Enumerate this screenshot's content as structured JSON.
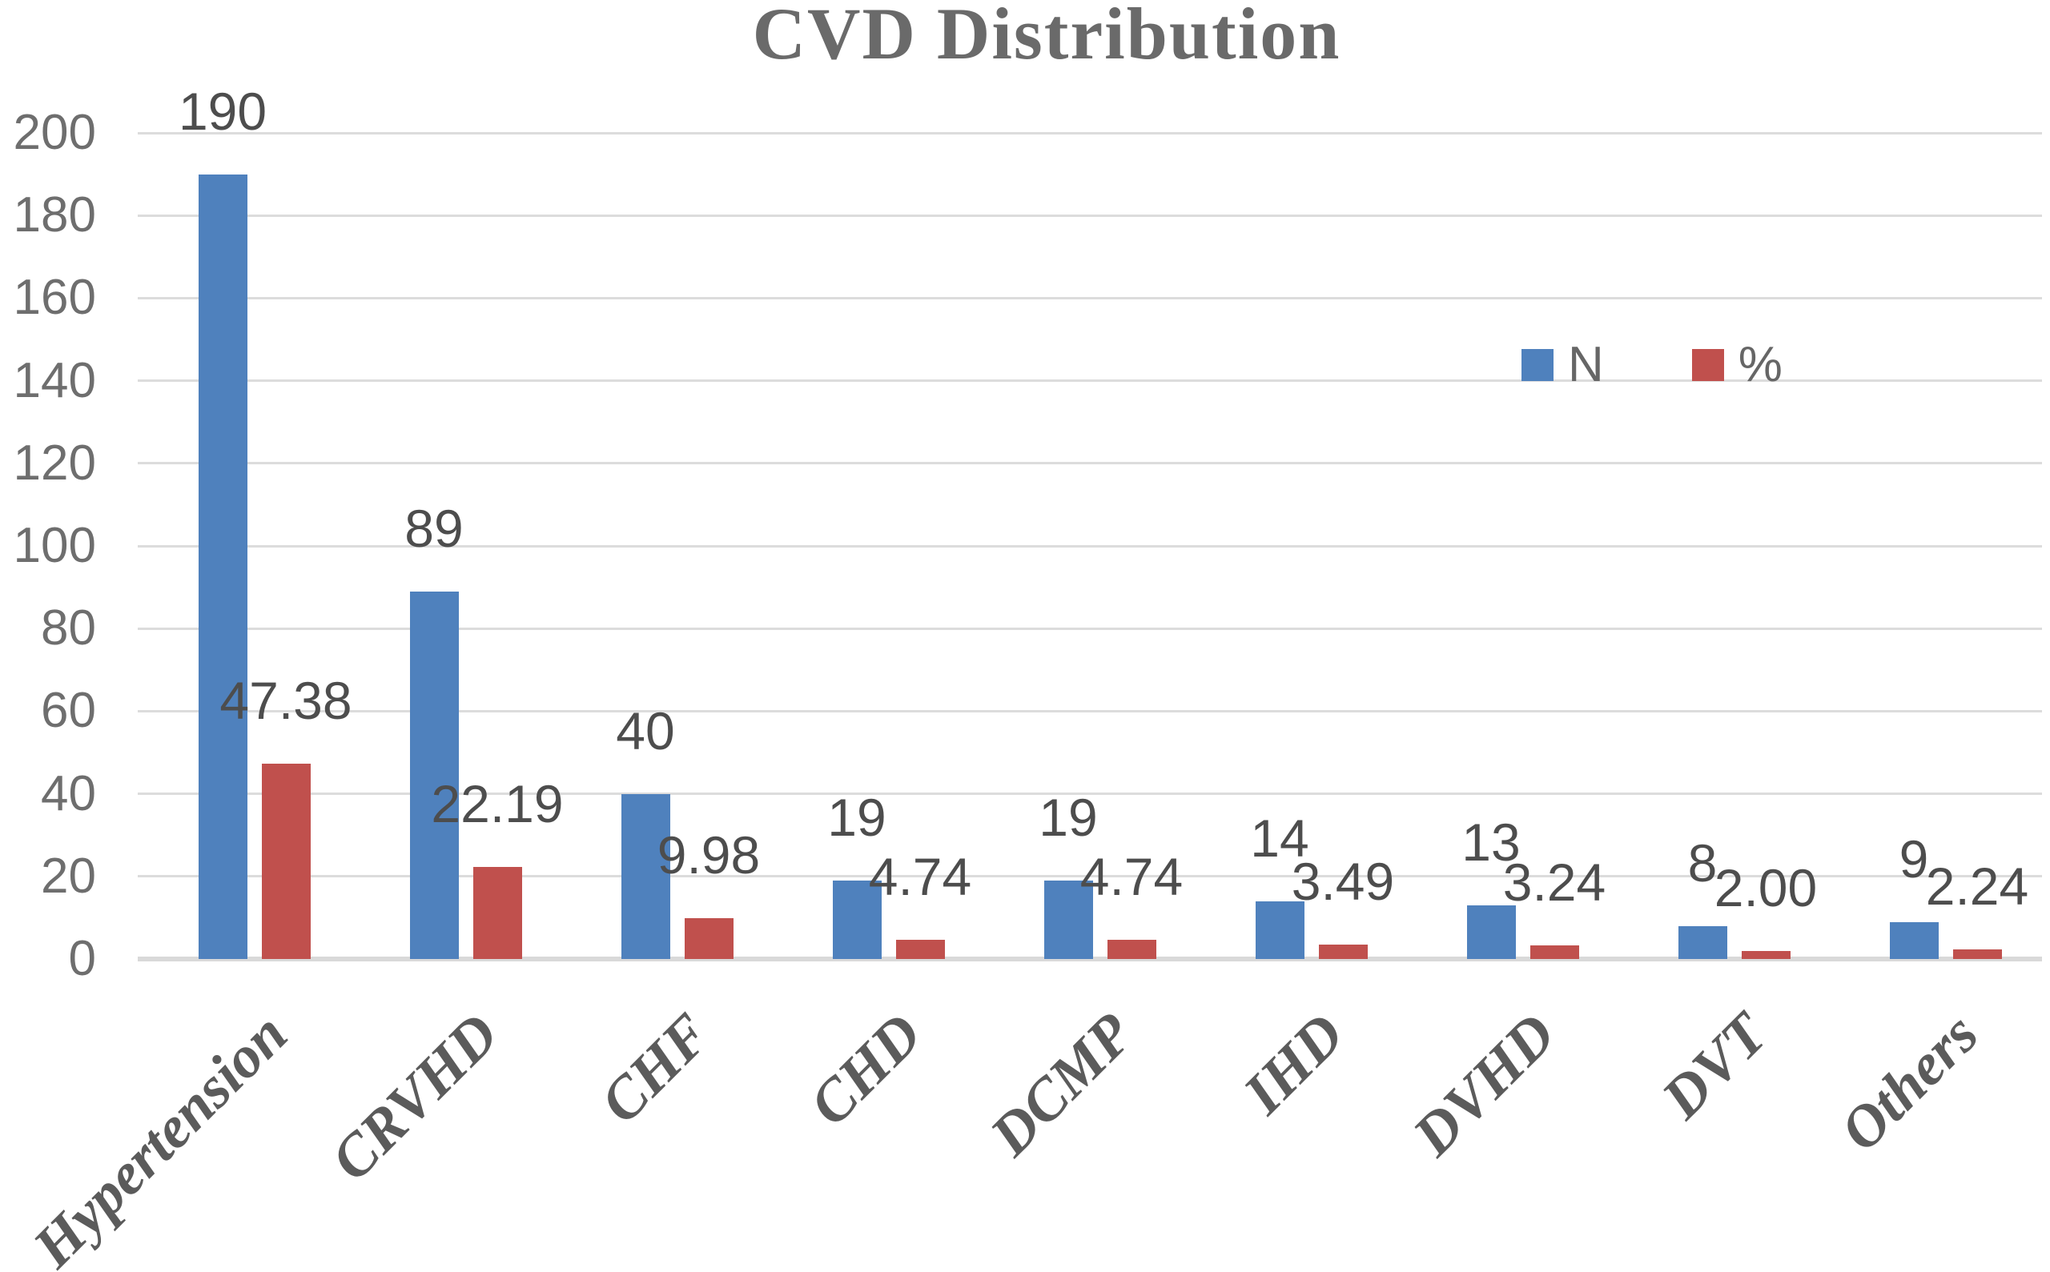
{
  "title": "CVD Distribution",
  "legend": {
    "items": [
      {
        "label": "N"
      },
      {
        "label": "%"
      }
    ]
  },
  "colors": {
    "series_n": "#4F81BD",
    "series_pct": "#C0504D",
    "gridline": "#DCDCDC",
    "axis_line": "#D9D9D9",
    "title_text": "#6A6A6A",
    "tick_text": "#6E6E6E",
    "data_label_text": "#4D4D4D",
    "category_text": "#5B5B5B",
    "legend_text": "#666666",
    "background": "#FFFFFF"
  },
  "chart_data": {
    "type": "bar",
    "title": "CVD Distribution",
    "categories": [
      "Hypertension",
      "CRVHD",
      "CHF",
      "CHD",
      "DCMP",
      "IHD",
      "DVHD",
      "DVT",
      "Others"
    ],
    "series": [
      {
        "name": "N",
        "color": "#4F81BD",
        "values": [
          190,
          89,
          40,
          19,
          19,
          14,
          13,
          8,
          9
        ],
        "data_labels": [
          "190",
          "89",
          "40",
          "19",
          "19",
          "14",
          "13",
          "8",
          "9"
        ]
      },
      {
        "name": "%",
        "color": "#C0504D",
        "values": [
          47.38,
          22.19,
          9.98,
          4.74,
          4.74,
          3.49,
          3.24,
          2.0,
          2.24
        ],
        "data_labels": [
          "47.38",
          "22.19",
          "9.98",
          "4.74",
          "4.74",
          "3.49",
          "3.24",
          "2.00",
          "2.24"
        ]
      }
    ],
    "xlabel": "",
    "ylabel": "",
    "ylim": [
      0,
      200
    ],
    "ytick_step": 20,
    "grid": true,
    "legend_position": "inside-top-right",
    "bar_label_position": "outside-end",
    "category_label_rotation_deg": 45
  }
}
